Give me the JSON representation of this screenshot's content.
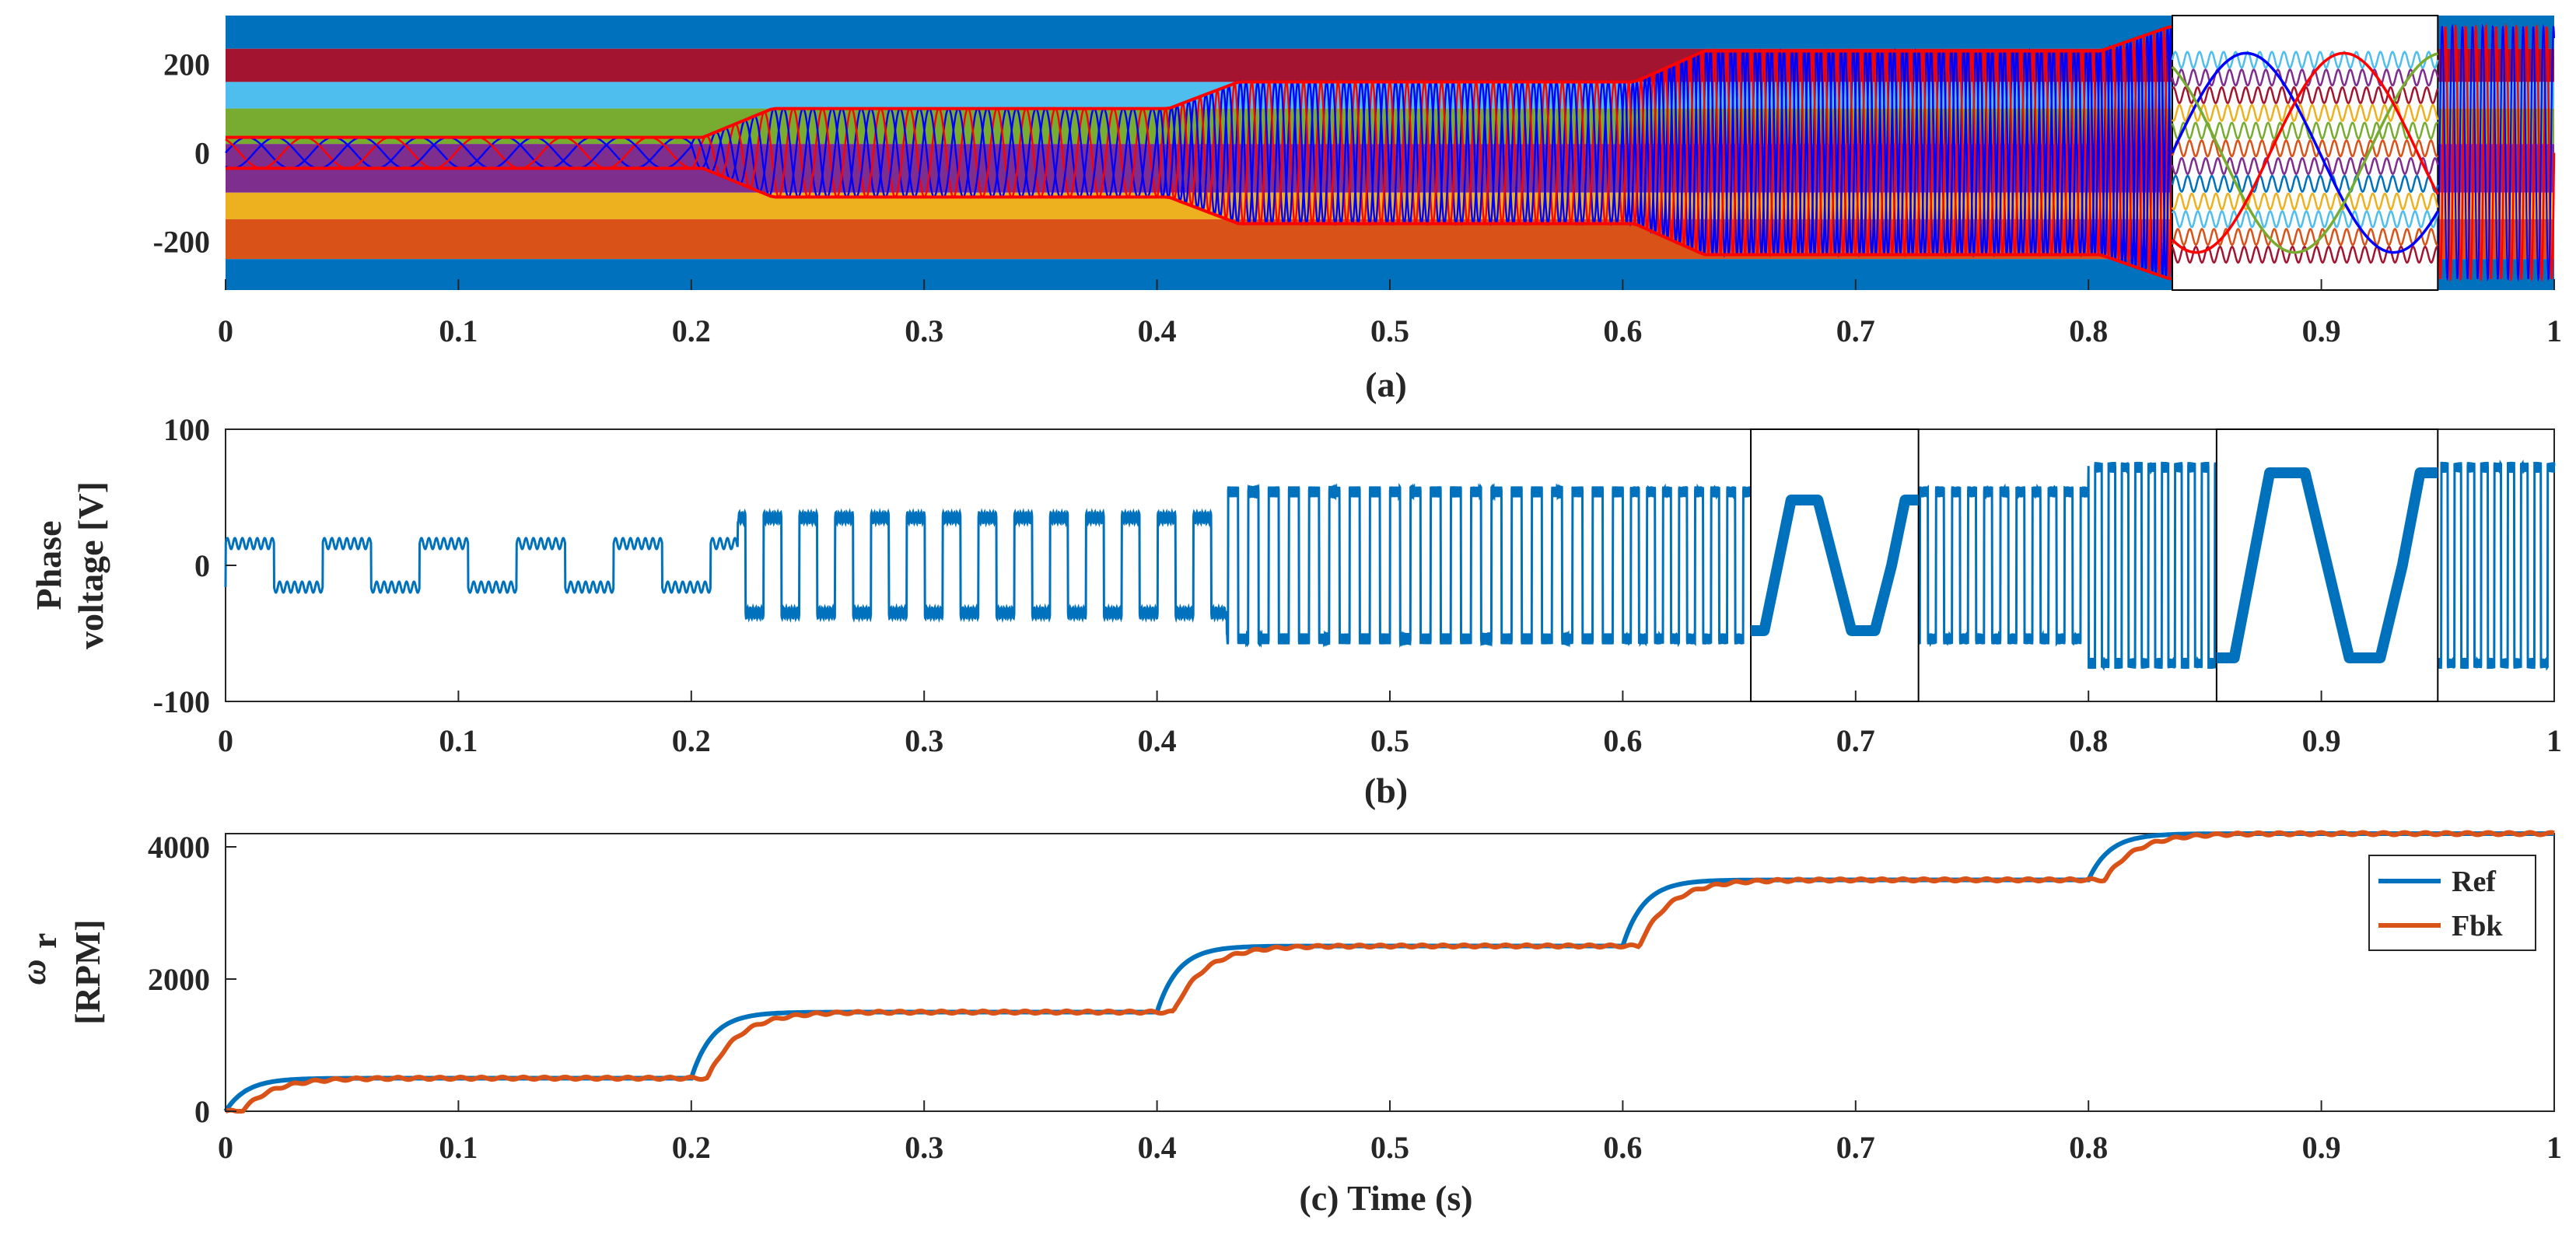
{
  "colors": {
    "blue": "#0072BD",
    "orange": "#D95319",
    "yellow": "#EDB120",
    "purple": "#7E2F8E",
    "green": "#77AC30",
    "cyan": "#4DBEEE",
    "maroon": "#A2142F",
    "red": "#FF0000",
    "navy": "#0000FF",
    "axis": "#262626"
  },
  "chart_data": [
    {
      "id": "a",
      "type": "line",
      "caption": "(a)",
      "xlim": [
        0,
        1
      ],
      "ylim": [
        -310,
        310
      ],
      "xticks": [
        "0",
        "0.1",
        "0.2",
        "0.3",
        "0.4",
        "0.5",
        "0.6",
        "0.7",
        "0.8",
        "0.9",
        "1"
      ],
      "yticks": [
        "200",
        "0",
        "-200"
      ],
      "ytick_values": [
        200,
        0,
        -200
      ],
      "series_description": "Multiphase currents; amplitude steps at 0.2 s intervals",
      "amplitude_steps": [
        {
          "t_start": 0.0,
          "t_end": 0.21,
          "amplitude": 35
        },
        {
          "t_start": 0.21,
          "t_end": 0.41,
          "amplitude": 100
        },
        {
          "t_start": 0.41,
          "t_end": 0.61,
          "amplitude": 160
        },
        {
          "t_start": 0.61,
          "t_end": 0.81,
          "amplitude": 230
        },
        {
          "t_start": 0.81,
          "t_end": 1.0,
          "amplitude": 285
        }
      ],
      "zoom_window": [
        0.836,
        0.95
      ]
    },
    {
      "id": "b",
      "type": "line",
      "caption": "(b)",
      "ylabel_line1": "Phase",
      "ylabel_line2": "voltage [V]",
      "xlim": [
        0,
        1
      ],
      "ylim": [
        -100,
        100
      ],
      "xticks": [
        "0",
        "0.1",
        "0.2",
        "0.3",
        "0.4",
        "0.5",
        "0.6",
        "0.7",
        "0.8",
        "0.9",
        "1"
      ],
      "yticks": [
        "100",
        "0",
        "-100"
      ],
      "ytick_values": [
        100,
        0,
        -100
      ],
      "voltage_steps": [
        {
          "t_start": 0.0,
          "t_end": 0.22,
          "level": 16
        },
        {
          "t_start": 0.22,
          "t_end": 0.43,
          "level": 35
        },
        {
          "t_start": 0.43,
          "t_end": 0.8,
          "level": 54
        },
        {
          "t_start": 0.8,
          "t_end": 1.0,
          "level": 72
        }
      ],
      "zoom_windows": [
        {
          "t_range": [
            0.655,
            0.727
          ],
          "level": 48
        },
        {
          "t_range": [
            0.855,
            0.95
          ],
          "level": 68
        }
      ]
    },
    {
      "id": "c",
      "type": "line",
      "caption": "(c)  Time (s)",
      "ylabel_symbol": "ω",
      "ylabel_sub": "r",
      "ylabel_line2": "[RPM]",
      "xlim": [
        0,
        1
      ],
      "ylim": [
        0,
        4200
      ],
      "xticks": [
        "0",
        "0.1",
        "0.2",
        "0.3",
        "0.4",
        "0.5",
        "0.6",
        "0.7",
        "0.8",
        "0.9",
        "1"
      ],
      "yticks": [
        "4000",
        "2000",
        "0"
      ],
      "ytick_values": [
        4000,
        2000,
        0
      ],
      "series": [
        {
          "name": "Ref",
          "color": "#0072BD",
          "steps": [
            [
              0.0,
              500
            ],
            [
              0.2,
              1500
            ],
            [
              0.4,
              2500
            ],
            [
              0.6,
              3500
            ],
            [
              0.8,
              4200
            ]
          ],
          "lag": 0.0
        },
        {
          "name": "Fbk",
          "color": "#D95319",
          "steps": [
            [
              0.0,
              500
            ],
            [
              0.2,
              1500
            ],
            [
              0.4,
              2500
            ],
            [
              0.6,
              3500
            ],
            [
              0.8,
              4200
            ]
          ],
          "lag": 0.007
        }
      ],
      "legend_position": "top-right"
    }
  ]
}
